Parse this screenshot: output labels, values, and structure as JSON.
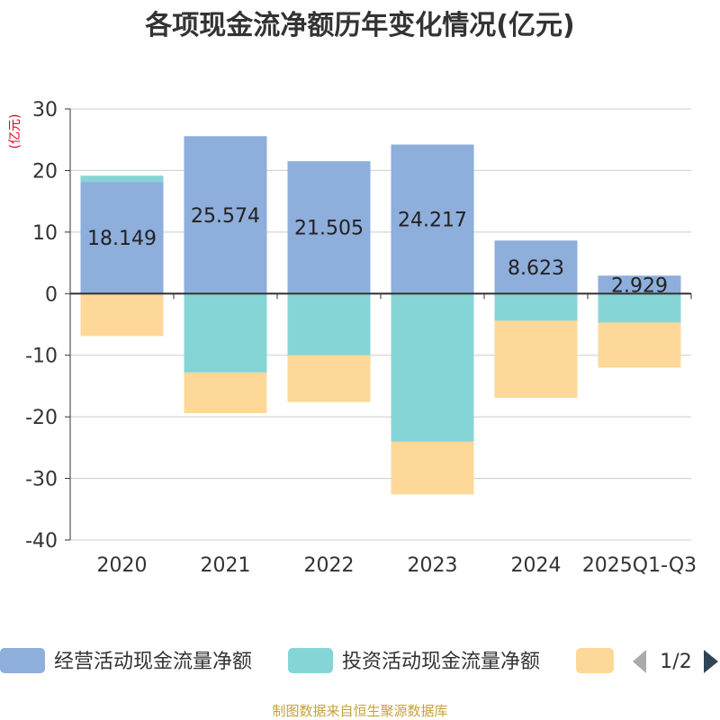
{
  "chart_data": {
    "type": "bar",
    "stacked": true,
    "title": "各项现金流净额历年变化情况(亿元)",
    "ylabel": "(亿元)",
    "xlabel": "",
    "categories": [
      "2020",
      "2021",
      "2022",
      "2023",
      "2024",
      "2025Q1-Q3"
    ],
    "ylim": [
      -40,
      30
    ],
    "yticks": [
      30,
      20,
      10,
      0,
      -10,
      -20,
      -30,
      -40
    ],
    "series": [
      {
        "name": "经营活动现金流量净额",
        "color": "#8eaedb",
        "values": [
          18.149,
          25.574,
          21.505,
          24.217,
          8.623,
          2.929
        ],
        "labels": [
          "18.149",
          "25.574",
          "21.505",
          "24.217",
          "8.623",
          "2.929"
        ]
      },
      {
        "name": "投资活动现金流量净额",
        "color": "#86d5d6",
        "values": [
          1.0,
          -12.8,
          -10.0,
          -24.0,
          -4.4,
          -4.7
        ]
      },
      {
        "name": "",
        "color": "#fdd899",
        "values": [
          -6.9,
          -6.6,
          -7.6,
          -8.6,
          -12.5,
          -7.3
        ]
      }
    ],
    "legend": {
      "page": "1/2"
    },
    "source": "制图数据来自恒生聚源数据库",
    "colors": {
      "title": "#333333",
      "unit": "#e0001b",
      "source": "#c8a03c",
      "grid": "#cccccc",
      "axis": "#333333"
    }
  }
}
